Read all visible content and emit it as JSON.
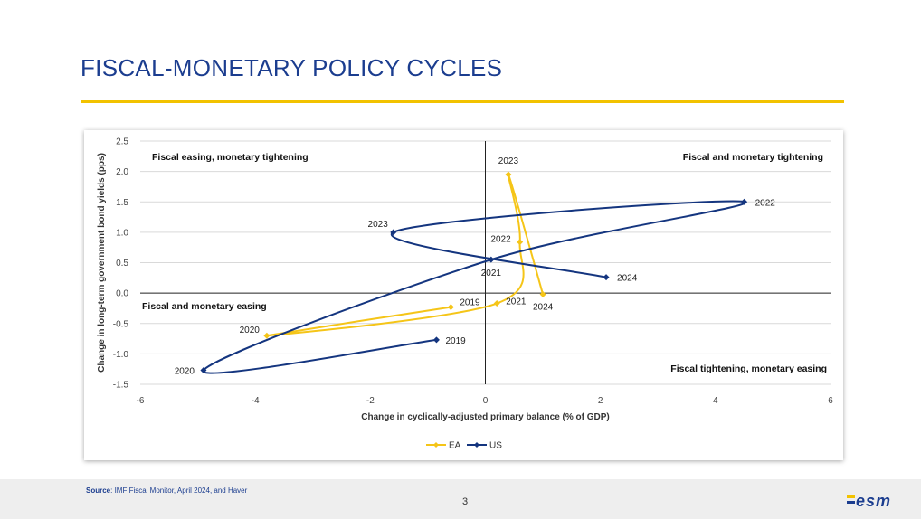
{
  "page": {
    "title": "FISCAL-MONETARY POLICY CYCLES",
    "source_label": "Source",
    "source_text": ": IMF Fiscal Monitor, April 2024, and Haver",
    "page_number": "3",
    "logo_text": "esm"
  },
  "colors": {
    "title": "#1b3d8f",
    "rule": "#f2c200",
    "ea": "#f5c518",
    "us": "#14357f"
  },
  "chart_data": {
    "type": "scatter",
    "xlabel": "Change in cyclically-adjusted primary balance (% of GDP)",
    "ylabel": "Change in long-term government bond yields (pps)",
    "xlim": [
      -6,
      6
    ],
    "ylim": [
      -1.5,
      2.5
    ],
    "xticks": [
      -6,
      -4,
      -2,
      0,
      2,
      4,
      6
    ],
    "yticks": [
      2.5,
      2.0,
      1.5,
      1.0,
      0.5,
      0.0,
      -0.5,
      -1.0,
      -1.5
    ],
    "xtick_labels": [
      "-6",
      "-4",
      "-2",
      "0",
      "2",
      "4",
      "6"
    ],
    "ytick_labels": [
      "2.5",
      "2.0",
      "1.5",
      "1.0",
      "0.5",
      "0.0",
      "-0.5",
      "-1.0",
      "-1.5"
    ],
    "grid": "horizontal",
    "legend_position": "bottom",
    "quadrant_labels": {
      "top_left": "Fiscal easing, monetary tightening",
      "top_right": "Fiscal and monetary tightening",
      "bottom_left": "Fiscal and monetary easing",
      "bottom_right": "Fiscal tightening, monetary easing"
    },
    "series": [
      {
        "name": "EA",
        "color": "#f5c518",
        "points": [
          {
            "label": "2019",
            "x": -0.6,
            "y": -0.23
          },
          {
            "label": "2020",
            "x": -3.8,
            "y": -0.7
          },
          {
            "label": "2021",
            "x": 0.2,
            "y": -0.17
          },
          {
            "label": "2022",
            "x": 0.6,
            "y": 0.84
          },
          {
            "label": "2023",
            "x": 0.4,
            "y": 1.95
          },
          {
            "label": "2024",
            "x": 1.0,
            "y": -0.02
          }
        ]
      },
      {
        "name": "US",
        "color": "#14357f",
        "points": [
          {
            "label": "2019",
            "x": -0.85,
            "y": -0.77
          },
          {
            "label": "2020",
            "x": -4.9,
            "y": -1.27
          },
          {
            "label": "2021",
            "x": 0.1,
            "y": 0.55
          },
          {
            "label": "2022",
            "x": 4.5,
            "y": 1.5
          },
          {
            "label": "2023",
            "x": -1.6,
            "y": 1.0
          },
          {
            "label": "2024",
            "x": 2.1,
            "y": 0.26
          }
        ]
      }
    ]
  }
}
